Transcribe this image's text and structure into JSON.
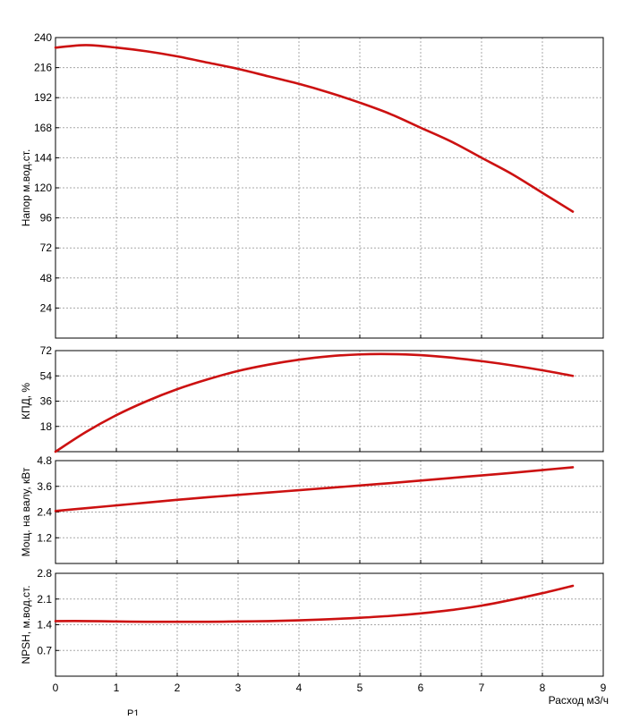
{
  "colors": {
    "curve": "#cc1111",
    "grid": "#a8a8a8"
  },
  "chart_data": {
    "type": "line",
    "x": [
      0,
      0.5,
      1,
      1.5,
      2,
      2.5,
      3,
      3.5,
      4,
      4.5,
      5,
      5.5,
      6,
      6.5,
      7,
      7.5,
      8,
      8.5
    ],
    "xlim": [
      0,
      9
    ],
    "xticks": [
      "0",
      "1",
      "2",
      "3",
      "4",
      "5",
      "6",
      "7",
      "8",
      "9"
    ],
    "xlabel": "Расход м3/ч",
    "curve_label": "P1",
    "grid": true,
    "panels": [
      {
        "id": "head",
        "ylabel": "Напор м.вод.ст.",
        "ylim": [
          0,
          240
        ],
        "yticks": [
          "24",
          "48",
          "72",
          "96",
          "120",
          "144",
          "168",
          "192",
          "216",
          "240"
        ],
        "values": [
          232,
          234,
          232,
          229,
          225,
          220,
          215,
          209,
          203,
          196,
          188,
          179,
          168,
          157,
          144,
          131,
          116,
          101
        ]
      },
      {
        "id": "efficiency",
        "ylabel": "КПД, %",
        "ylim": [
          0,
          72
        ],
        "yticks": [
          "18",
          "36",
          "54",
          "72"
        ],
        "values": [
          0,
          14,
          26,
          36,
          44.5,
          51.5,
          57.5,
          62,
          65.5,
          68,
          69.3,
          69.5,
          68.8,
          67,
          64.5,
          61.5,
          58,
          54
        ]
      },
      {
        "id": "power",
        "ylabel": "Мощ. на валу, кВт",
        "ylim": [
          0,
          4.8
        ],
        "yticks": [
          "1.2",
          "2.4",
          "3.6",
          "4.8"
        ],
        "values": [
          2.45,
          2.58,
          2.71,
          2.84,
          2.97,
          3.09,
          3.2,
          3.31,
          3.42,
          3.53,
          3.64,
          3.75,
          3.87,
          3.99,
          4.11,
          4.23,
          4.36,
          4.49
        ]
      },
      {
        "id": "npsh",
        "ylabel": "NPSH, м.вод.ст.",
        "ylim": [
          0,
          2.8
        ],
        "yticks": [
          "0.7",
          "1.4",
          "2.1",
          "2.8"
        ],
        "values": [
          1.5,
          1.5,
          1.49,
          1.48,
          1.48,
          1.48,
          1.49,
          1.5,
          1.52,
          1.55,
          1.59,
          1.64,
          1.71,
          1.8,
          1.92,
          2.08,
          2.26,
          2.46
        ]
      }
    ]
  }
}
